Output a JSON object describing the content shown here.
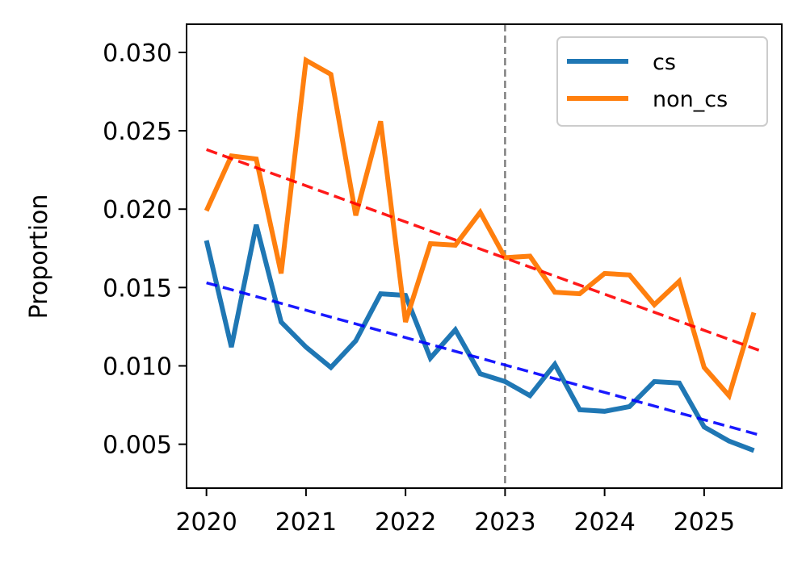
{
  "chart_data": {
    "type": "line",
    "title": "",
    "xlabel": "",
    "ylabel": "Proportion",
    "xlim": [
      2019.8,
      2025.78
    ],
    "ylim": [
      0.0022,
      0.0318
    ],
    "xticks": [
      2020,
      2021,
      2022,
      2023,
      2024,
      2025
    ],
    "xtick_labels": [
      "2020",
      "2021",
      "2022",
      "2023",
      "2024",
      "2025"
    ],
    "yticks": [
      0.005,
      0.01,
      0.015,
      0.02,
      0.025,
      0.03
    ],
    "ytick_labels": [
      "0.005",
      "0.010",
      "0.015",
      "0.020",
      "0.025",
      "0.030"
    ],
    "vline": {
      "x": 2023,
      "color": "#808080"
    },
    "x": [
      2020.0,
      2020.25,
      2020.5,
      2020.75,
      2021.0,
      2021.25,
      2021.5,
      2021.75,
      2022.0,
      2022.25,
      2022.5,
      2022.75,
      2023.0,
      2023.25,
      2023.5,
      2023.75,
      2024.0,
      2024.25,
      2024.5,
      2024.75,
      2025.0,
      2025.25,
      2025.5
    ],
    "series": [
      {
        "name": "cs",
        "color": "#1f77b4",
        "values": [
          0.018,
          0.0112,
          0.019,
          0.0128,
          0.0112,
          0.0099,
          0.0116,
          0.0146,
          0.0145,
          0.0105,
          0.0123,
          0.0095,
          0.009,
          0.0081,
          0.0101,
          0.0072,
          0.0071,
          0.0074,
          0.009,
          0.0089,
          0.0061,
          0.0052,
          0.0046
        ]
      },
      {
        "name": "non_cs",
        "color": "#ff7f0e",
        "values": [
          0.0199,
          0.0234,
          0.0232,
          0.0159,
          0.0295,
          0.0286,
          0.0196,
          0.0256,
          0.0128,
          0.0178,
          0.0177,
          0.0198,
          0.0169,
          0.017,
          0.0147,
          0.0146,
          0.0159,
          0.0158,
          0.0139,
          0.0154,
          0.0099,
          0.0081,
          0.0134
        ]
      }
    ],
    "trendlines": [
      {
        "for": "cs",
        "color": "#0000ff",
        "x": [
          2020.0,
          2025.55
        ],
        "y": [
          0.0153,
          0.0056
        ]
      },
      {
        "for": "non_cs",
        "color": "#ff0000",
        "x": [
          2020.0,
          2025.55
        ],
        "y": [
          0.0238,
          0.011
        ]
      }
    ],
    "legend": {
      "position": "top-right",
      "entries": [
        "cs",
        "non_cs"
      ]
    }
  }
}
